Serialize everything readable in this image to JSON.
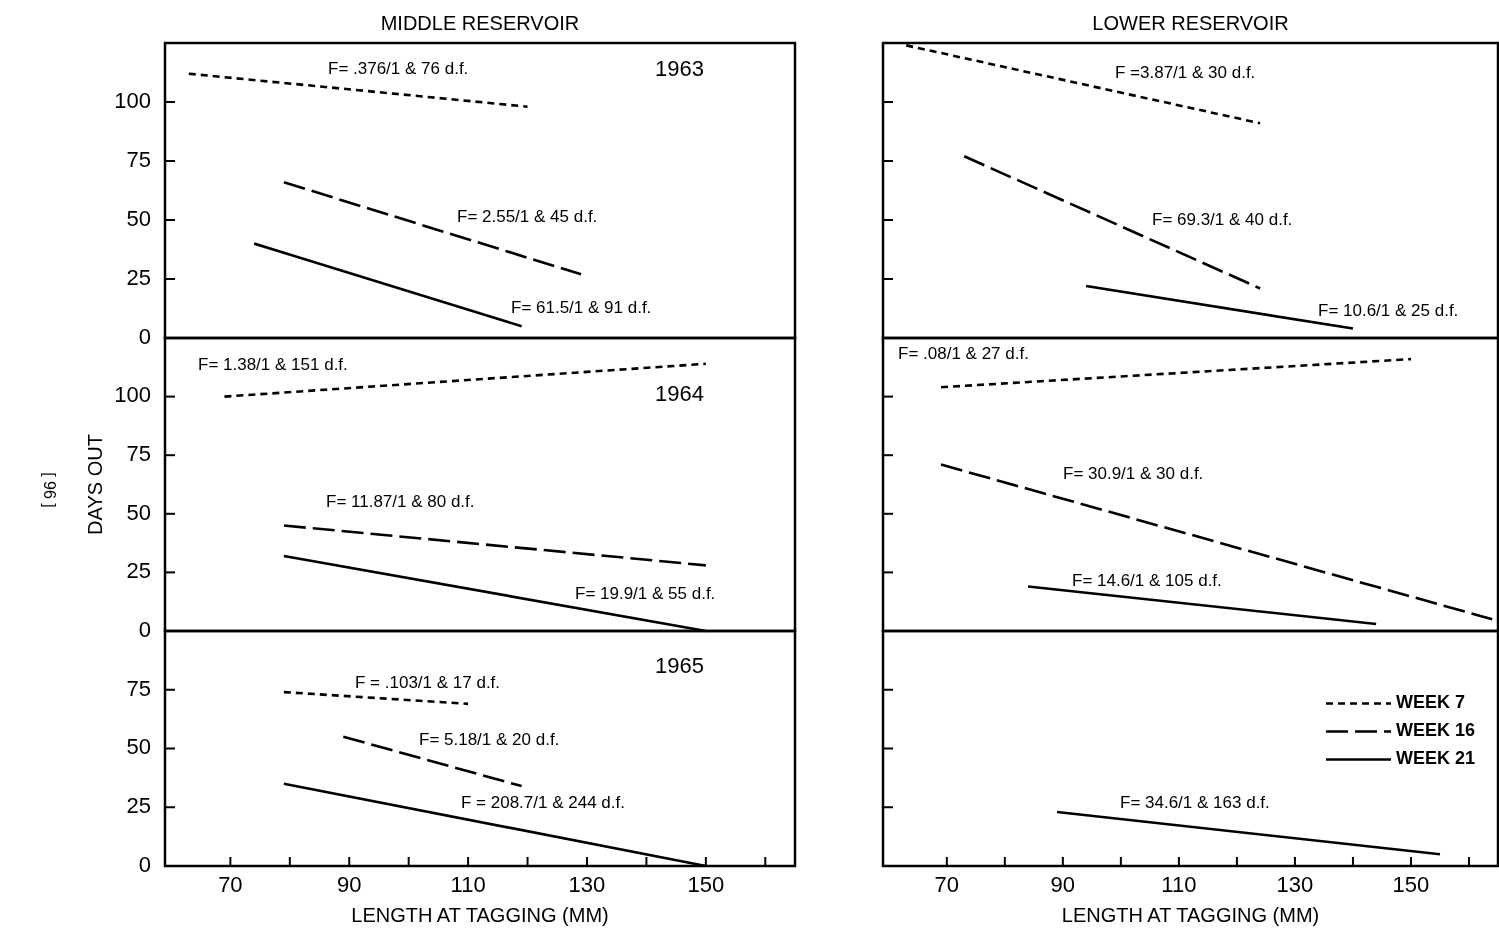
{
  "chart_data": [
    {
      "type": "line",
      "title": "MIDDLE RESERVOIR",
      "xlim": [
        59,
        165
      ],
      "ylim": [
        0,
        125
      ],
      "yticks": [
        0,
        25,
        50,
        75,
        100
      ],
      "tick_labels": "y",
      "series": [
        {
          "color": "#000000",
          "line_style": "dashed",
          "x": [
            63,
            120
          ],
          "values": [
            112,
            98
          ]
        },
        {
          "color": "#000000",
          "line_style": "dashed",
          "x": [
            79,
            129
          ],
          "values": [
            66,
            27
          ]
        },
        {
          "color": "#000000",
          "line_style": "solid",
          "x": [
            74,
            119
          ],
          "values": [
            40,
            5
          ]
        }
      ],
      "annotations": [
        "F= .376/1 & 76 d.f.",
        "F= 2.55/1 & 45 d.f.",
        "F= 61.5/1 & 91 d.f.",
        "1963"
      ]
    },
    {
      "type": "line",
      "title": "LOWER RESERVOIR",
      "xlim": [
        59,
        165
      ],
      "ylim": [
        0,
        125
      ],
      "yticks": [
        0,
        25,
        50,
        75,
        100
      ],
      "tick_labels": false,
      "series": [
        {
          "color": "#000000",
          "line_style": "dashed",
          "x": [
            63,
            124
          ],
          "values": [
            124,
            91
          ]
        },
        {
          "color": "#000000",
          "line_style": "dashed",
          "x": [
            73,
            124
          ],
          "values": [
            77,
            21
          ]
        },
        {
          "color": "#000000",
          "line_style": "solid",
          "x": [
            94,
            140
          ],
          "values": [
            22,
            4
          ]
        }
      ],
      "annotations": [
        "F =3.87/1 & 30 d.f.",
        "F= 69.3/1 & 40 d.f.",
        "F= 10.6/1 & 25 d.f."
      ]
    },
    {
      "type": "line",
      "ylabel": "DAYS OUT",
      "xlim": [
        59,
        165
      ],
      "ylim": [
        0,
        125
      ],
      "yticks": [
        0,
        25,
        50,
        75,
        100
      ],
      "tick_labels": "y",
      "series": [
        {
          "color": "#000000",
          "line_style": "dashed",
          "x": [
            69,
            150
          ],
          "values": [
            100,
            114
          ]
        },
        {
          "color": "#000000",
          "line_style": "dashed",
          "x": [
            79,
            150
          ],
          "values": [
            45,
            28
          ]
        },
        {
          "color": "#000000",
          "line_style": "solid",
          "x": [
            79,
            150
          ],
          "values": [
            32,
            0
          ]
        }
      ],
      "annotations": [
        "F= 1.38/1 & 151 d.f.",
        "F= 11.87/1 & 80 d.f.",
        "F= 19.9/1 & 55 d.f.",
        "1964",
        "[ 96 ]"
      ]
    },
    {
      "type": "line",
      "xlim": [
        59,
        165
      ],
      "ylim": [
        0,
        125
      ],
      "yticks": [
        0,
        25,
        50,
        75,
        100
      ],
      "tick_labels": false,
      "series": [
        {
          "color": "#000000",
          "line_style": "dashed",
          "x": [
            69,
            150
          ],
          "values": [
            104,
            116
          ]
        },
        {
          "color": "#000000",
          "line_style": "dashed",
          "x": [
            69,
            164
          ],
          "values": [
            71,
            5
          ]
        },
        {
          "color": "#000000",
          "line_style": "solid",
          "x": [
            84,
            144
          ],
          "values": [
            19,
            3
          ]
        }
      ],
      "annotations": [
        "F= .08/1 & 27 d.f.",
        "F= 30.9/1 & 30 d.f.",
        "F= 14.6/1 & 105 d.f."
      ]
    },
    {
      "type": "line",
      "xlabel": "LENGTH AT TAGGING (MM)",
      "xlim": [
        59,
        165
      ],
      "ylim": [
        0,
        100
      ],
      "yticks": [
        0,
        25,
        50,
        75
      ],
      "xticks": [
        70,
        {
          "value": 80,
          "label": null
        },
        90,
        {
          "value": 100,
          "label": null
        },
        110,
        {
          "value": 120,
          "label": null
        },
        130,
        {
          "value": 140,
          "label": null
        },
        150,
        {
          "value": 160,
          "label": null
        }
      ],
      "series": [
        {
          "color": "#000000",
          "line_style": "dashed",
          "x": [
            79,
            110
          ],
          "values": [
            74,
            69
          ]
        },
        {
          "color": "#000000",
          "line_style": "dashed",
          "x": [
            89,
            119
          ],
          "values": [
            55,
            34
          ]
        },
        {
          "color": "#000000",
          "line_style": "solid",
          "x": [
            79,
            150
          ],
          "values": [
            35,
            0
          ]
        }
      ],
      "annotations": [
        "F = .103/1 & 17 d.f.",
        "F= 5.18/1 & 20 d.f.",
        "F = 208.7/1 & 244 d.f.",
        "1965"
      ]
    },
    {
      "type": "line",
      "xlabel": "LENGTH AT TAGGING (MM)",
      "xlim": [
        59,
        165
      ],
      "ylim": [
        0,
        100
      ],
      "yticks": [
        0,
        25,
        50,
        75
      ],
      "xticks": [
        70,
        {
          "value": 80,
          "label": null
        },
        90,
        {
          "value": 100,
          "label": null
        },
        110,
        {
          "value": 120,
          "label": null
        },
        130,
        {
          "value": 140,
          "label": null
        },
        150,
        {
          "value": 160,
          "label": null
        }
      ],
      "tick_labels": "x",
      "legend": "right",
      "series": [
        {
          "name": "WEEK 7",
          "color": "#000000",
          "line_style": "dashed"
        },
        {
          "name": "WEEK 16",
          "color": "#000000",
          "line_style": "dashed"
        },
        {
          "name": "WEEK 21",
          "color": "#000000",
          "line_style": "solid",
          "x": [
            89,
            155
          ],
          "values": [
            23,
            5
          ]
        }
      ],
      "annotations": [
        "F= 34.6/1 & 163 d.f."
      ]
    }
  ]
}
